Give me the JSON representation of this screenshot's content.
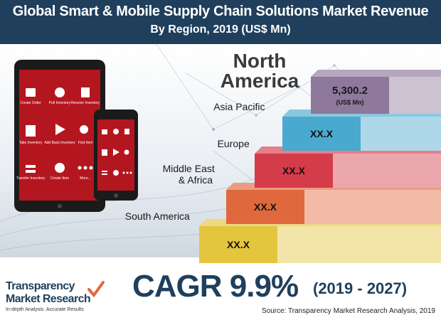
{
  "header": {
    "title": "Global Smart & Mobile Supply Chain Solutions Market Revenue",
    "subtitle": "By Region, 2019 (US$ Mn)"
  },
  "colors": {
    "header_bg": "#1f3f5c",
    "north_america": "#8e789b",
    "asia_pacific": "#4aa9cf",
    "europe": "#d43c49",
    "middle_east_africa": "#e0683d",
    "south_america": "#e4c53e",
    "accent": "#1f3f5c"
  },
  "devices": {
    "tablet_items": [
      "Create Order",
      "Pull Inventory",
      "Receive Inventory",
      "Take Inventory",
      "Add Back Inventory",
      "Find Item",
      "Transfer Inventory",
      "Create Item",
      "More..."
    ]
  },
  "chart_data": {
    "type": "bar",
    "title": "Global Smart & Mobile Supply Chain Solutions Market Revenue",
    "subtitle": "By Region, 2019 (US$ Mn)",
    "categories": [
      "North America",
      "Asia Pacific",
      "Europe",
      "Middle East & Africa",
      "South America"
    ],
    "category_lines": [
      [
        "North",
        "America"
      ],
      [
        "Asia Pacific"
      ],
      [
        "Europe"
      ],
      [
        "Middle East",
        "& Africa"
      ],
      [
        "South America"
      ]
    ],
    "value_labels": [
      "5,300.2",
      "XX.X",
      "XX.X",
      "XX.X",
      "XX.X"
    ],
    "values": [
      5300.2,
      null,
      null,
      null,
      null
    ],
    "unit_label": "(US$ Mn)",
    "colors": [
      "#8e789b",
      "#4aa9cf",
      "#d43c49",
      "#e0683d",
      "#e4c53e"
    ],
    "layout": "staircase",
    "legend": "none",
    "grid": false
  },
  "footer": {
    "cagr": "CAGR 9.9%",
    "period": "(2019 - 2027)",
    "source": "Source: Transparency Market Research Analysis, 2019"
  },
  "logo": {
    "name_line1": "Transparency",
    "name_line2": "Market Research",
    "tagline": "In-depth Analysis. Accurate Results"
  }
}
